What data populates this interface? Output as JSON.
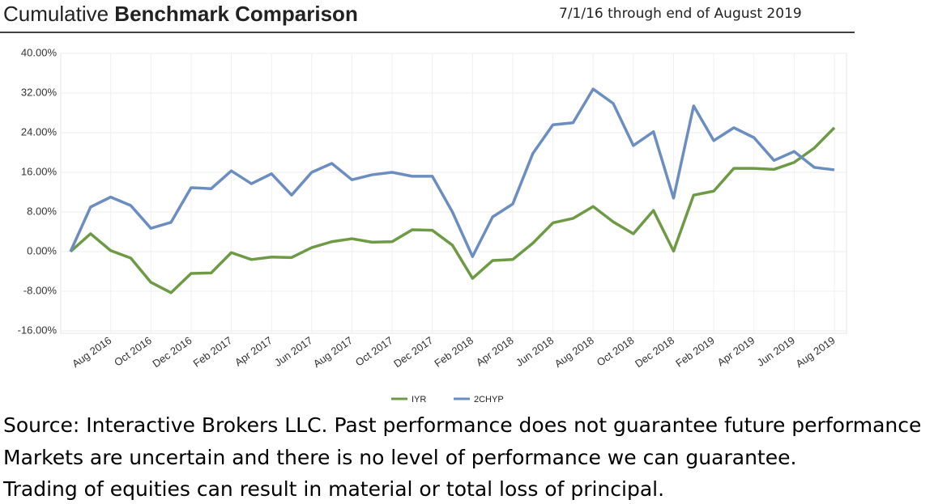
{
  "chart_data": {
    "type": "line",
    "title": [
      "Cumulative",
      "Benchmark Comparison"
    ],
    "subtitle": "7/1/16 through end of August 2019",
    "categories": [
      null,
      null,
      "Aug 2016",
      null,
      "Oct 2016",
      null,
      "Dec 2016",
      null,
      "Feb 2017",
      null,
      "Apr 2017",
      null,
      "Jun 2017",
      null,
      "Aug 2017",
      null,
      "Oct 2017",
      null,
      "Dec 2017",
      null,
      "Feb 2018",
      null,
      "Apr 2018",
      null,
      "Jun 2018",
      null,
      "Aug 2018",
      null,
      "Oct 2018",
      null,
      "Dec 2018",
      null,
      "Feb 2019",
      null,
      "Apr 2019",
      null,
      "Jun 2019",
      null,
      "Aug 2019"
    ],
    "series": [
      {
        "name": "IYR",
        "color": "#6e9a45",
        "values": [
          0,
          3.6,
          0.2,
          -1.3,
          -6.2,
          -8.3,
          -4.4,
          -4.3,
          -0.2,
          -1.6,
          -1.1,
          -1.2,
          0.8,
          2.0,
          2.6,
          1.9,
          2.0,
          4.4,
          4.3,
          1.3,
          -5.4,
          -1.8,
          -1.6,
          1.7,
          5.8,
          6.7,
          9.1,
          6.0,
          3.6,
          8.3,
          0.1,
          11.4,
          12.2,
          16.8,
          16.8,
          16.6,
          18.0,
          20.9,
          25.0
        ]
      },
      {
        "name": "2CHYP",
        "color": "#6b8dc0",
        "values": [
          0,
          9.0,
          11.0,
          9.3,
          4.7,
          5.9,
          12.9,
          12.7,
          16.3,
          13.7,
          15.7,
          11.4,
          16.0,
          17.8,
          14.5,
          15.5,
          16.0,
          15.2,
          15.2,
          8.0,
          -1.0,
          7.0,
          9.6,
          19.8,
          25.6,
          26.0,
          32.8,
          29.9,
          21.4,
          24.2,
          10.8,
          29.4,
          22.4,
          25.0,
          23.0,
          18.4,
          20.2,
          17.0,
          16.5
        ]
      }
    ],
    "ylim": [
      -16,
      40
    ],
    "yticks": [
      {
        "value": -16,
        "label": "-16.00%"
      },
      {
        "value": -8,
        "label": "-8.00%"
      },
      {
        "value": 0,
        "label": "0.00%"
      },
      {
        "value": 8,
        "label": "8.00%"
      },
      {
        "value": 16,
        "label": "16.00%"
      },
      {
        "value": 24,
        "label": "24.00%"
      },
      {
        "value": 32,
        "label": "32.00%"
      },
      {
        "value": 40,
        "label": "40.00%"
      }
    ],
    "grid": true,
    "legend": "bottom"
  },
  "notes": [
    "Source: Interactive Brokers LLC.  Past performance does not guarantee future performance",
    "Markets are uncertain and there is no level of performance we can guarantee.",
    "Trading of equities can result in material or total loss of principal."
  ]
}
